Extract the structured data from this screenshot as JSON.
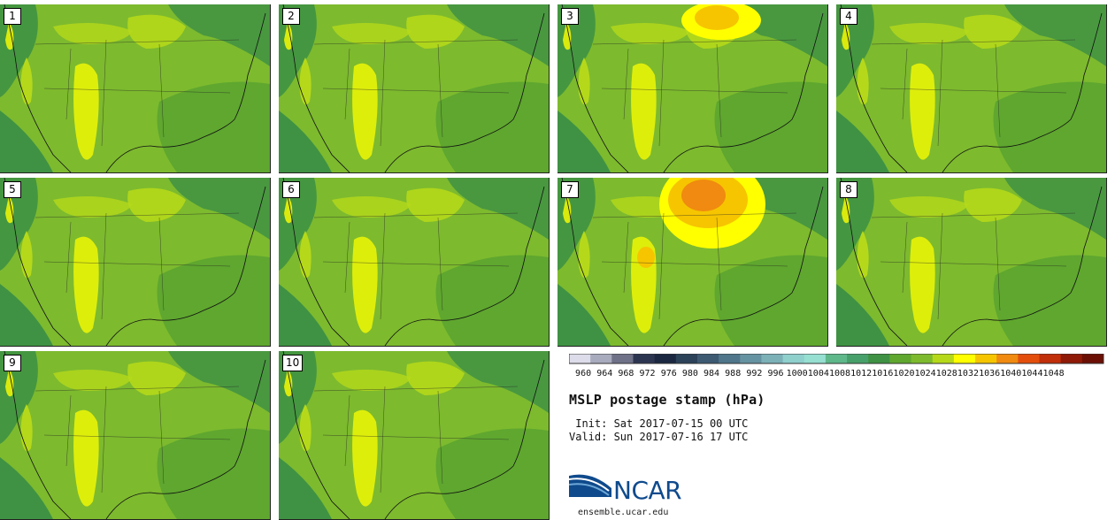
{
  "panels": [
    {
      "label": "1",
      "highs": []
    },
    {
      "label": "2",
      "highs": []
    },
    {
      "label": "3",
      "highs": [
        "high-a"
      ]
    },
    {
      "label": "4",
      "highs": []
    },
    {
      "label": "5",
      "highs": []
    },
    {
      "label": "6",
      "highs": []
    },
    {
      "label": "7",
      "highs": [
        "high-a",
        "high-b"
      ]
    },
    {
      "label": "8",
      "highs": []
    },
    {
      "label": "9",
      "highs": []
    },
    {
      "label": "10",
      "highs": []
    }
  ],
  "colorbar": {
    "ticks": [
      "960",
      "964",
      "968",
      "972",
      "976",
      "980",
      "984",
      "988",
      "992",
      "996",
      "1000",
      "1004",
      "1008",
      "1012",
      "1016",
      "1020",
      "1024",
      "1028",
      "1032",
      "1036",
      "1040",
      "1044",
      "1048"
    ],
    "colors": [
      "#dcdcea",
      "#a8aabd",
      "#6e7187",
      "#2c3550",
      "#1b2740",
      "#2b4259",
      "#3d5a72",
      "#4f768a",
      "#6693a1",
      "#7cb1b8",
      "#8fcfcc",
      "#96dfd1",
      "#5fb88a",
      "#47a06a",
      "#3f9243",
      "#5fa72f",
      "#7dba2e",
      "#b5d91a",
      "#ffff00",
      "#f6c500",
      "#f08a10",
      "#e34e0d",
      "#c02e0a",
      "#8e1a07",
      "#6b0f04"
    ]
  },
  "title": "MSLP postage stamp (hPa)",
  "init": " Init: Sat 2017-07-15 00 UTC",
  "valid": "Valid: Sun 2017-07-16 17 UTC",
  "logo": {
    "text": "NCAR",
    "site": "ensemble.ucar.edu"
  }
}
